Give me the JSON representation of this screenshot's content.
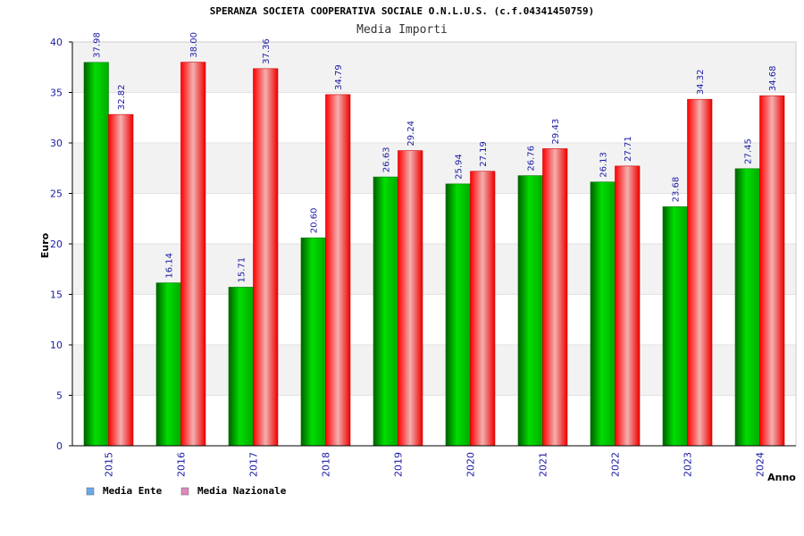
{
  "chart_data": {
    "type": "bar",
    "title": "SPERANZA SOCIETA COOPERATIVA SOCIALE O.N.L.U.S. (c.f.04341450759)",
    "subtitle": "Media Importi",
    "xlabel": "Anno",
    "ylabel": "Euro",
    "ylim": [
      0,
      40
    ],
    "yticks": [
      0,
      5,
      10,
      15,
      20,
      25,
      30,
      35,
      40
    ],
    "grid": true,
    "legend_position": "bottom-left",
    "categories": [
      "2015",
      "2016",
      "2017",
      "2018",
      "2019",
      "2020",
      "2021",
      "2022",
      "2023",
      "2024"
    ],
    "series": [
      {
        "name": "Media Ente",
        "color": "#00b300",
        "legend_color": "#66aaee",
        "values": [
          37.98,
          16.14,
          15.71,
          20.6,
          26.63,
          25.94,
          26.76,
          26.13,
          23.68,
          27.45
        ],
        "labels": [
          "37.98",
          "16.14",
          "15.71",
          "20.60",
          "26.63",
          "25.94",
          "26.76",
          "26.13",
          "23.68",
          "27.45"
        ]
      },
      {
        "name": "Media Nazionale",
        "color": "#ee0000",
        "legend_color": "#dd88bb",
        "values": [
          32.82,
          38.0,
          37.36,
          34.79,
          29.24,
          27.19,
          29.43,
          27.71,
          34.32,
          34.68
        ],
        "labels": [
          "32.82",
          "38.00",
          "37.36",
          "34.79",
          "29.24",
          "27.19",
          "29.43",
          "27.71",
          "34.32",
          "34.68"
        ]
      }
    ]
  }
}
